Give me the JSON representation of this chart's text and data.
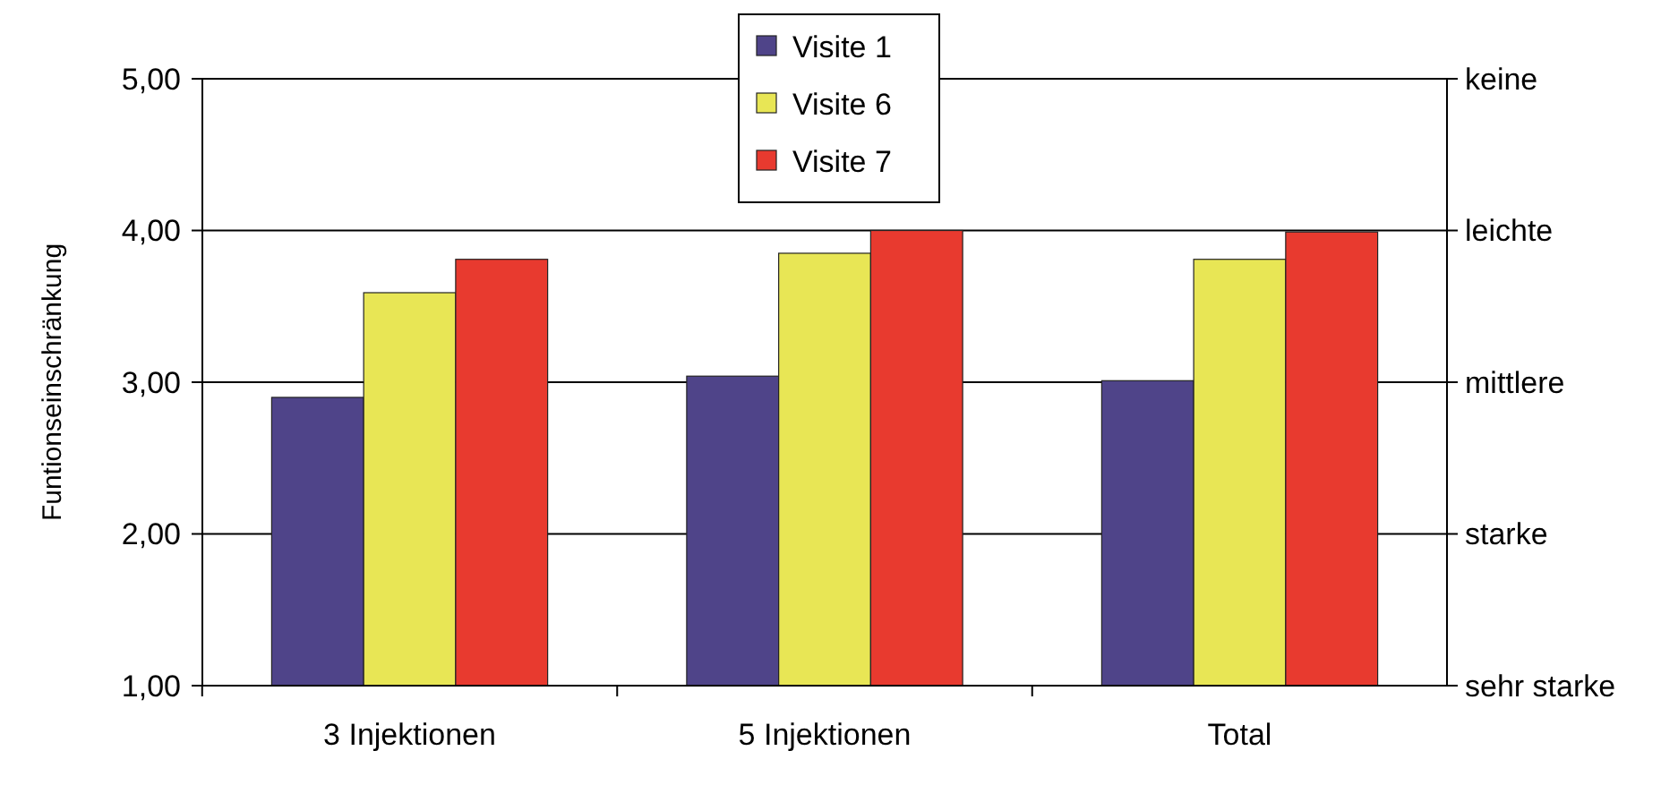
{
  "chart_data": {
    "type": "bar",
    "ylabel": "Funtionseinschränkung",
    "categories": [
      "3 Injektionen",
      "5 Injektionen",
      "Total"
    ],
    "series": [
      {
        "name": "Visite 1",
        "color": "#4f4489",
        "values": [
          2.9,
          3.04,
          3.01
        ]
      },
      {
        "name": "Visite 6",
        "color": "#e8e655",
        "values": [
          3.59,
          3.85,
          3.81
        ]
      },
      {
        "name": "Visite 7",
        "color": "#e83a2f",
        "values": [
          3.81,
          4.0,
          3.99
        ]
      }
    ],
    "ylim": [
      1,
      5
    ],
    "yticks": [
      {
        "value": 1,
        "label": "1,00"
      },
      {
        "value": 2,
        "label": "2,00"
      },
      {
        "value": 3,
        "label": "3,00"
      },
      {
        "value": 4,
        "label": "4,00"
      },
      {
        "value": 5,
        "label": "5,00"
      }
    ],
    "ref_lines": [
      {
        "axis": "y",
        "value": 1,
        "label": "sehr starke"
      },
      {
        "axis": "y",
        "value": 2,
        "label": "starke"
      },
      {
        "axis": "y",
        "value": 3,
        "label": "mittlere"
      },
      {
        "axis": "y",
        "value": 4,
        "label": "leichte"
      },
      {
        "axis": "y",
        "value": 5,
        "label": "keine"
      }
    ],
    "legend": "top"
  }
}
